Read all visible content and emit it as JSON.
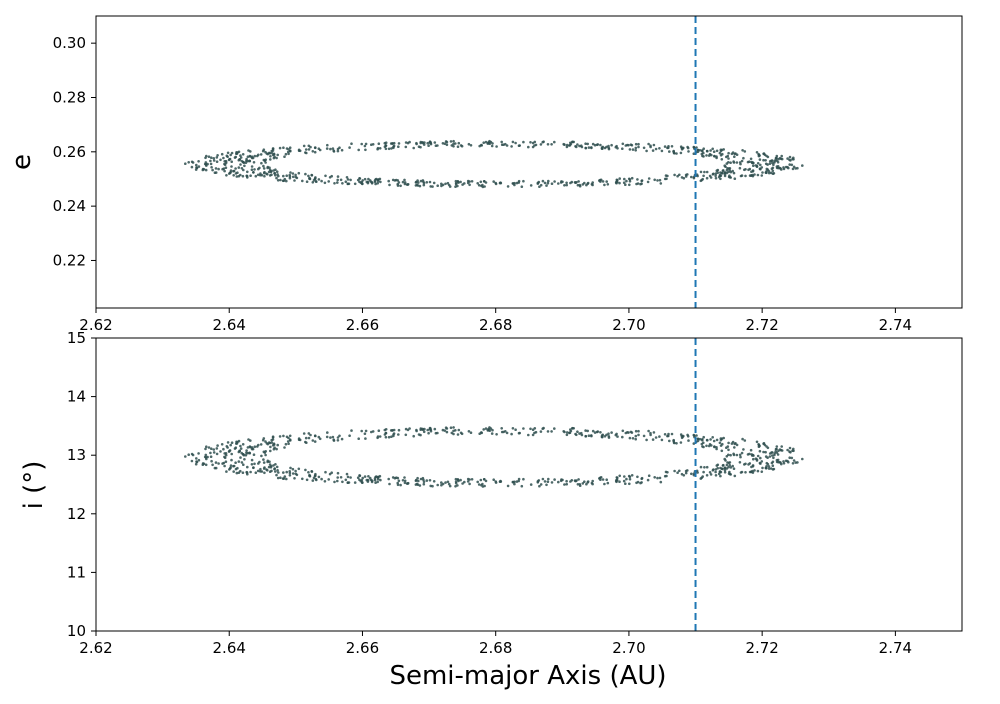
{
  "chart_data": [
    {
      "type": "scatter",
      "title": "",
      "xlabel": "",
      "ylabel": "e",
      "xlim": [
        2.62,
        2.75
      ],
      "ylim": [
        0.2025,
        0.31
      ],
      "xticks": [
        "2.62",
        "2.64",
        "2.66",
        "2.68",
        "2.70",
        "2.72",
        "2.74"
      ],
      "yticks": [
        "0.22",
        "0.24",
        "0.26",
        "0.28",
        "0.30"
      ],
      "grid": false,
      "marker_color": "#2f4f4f",
      "reference_line": {
        "x": 2.71,
        "style": "dashed",
        "color": "#1f77b4"
      },
      "distribution": {
        "a_range": [
          2.6333,
          2.7265
        ],
        "e_center": 0.2555,
        "e_half_width": 0.0085,
        "approx_points": 900
      }
    },
    {
      "type": "scatter",
      "title": "",
      "xlabel": "Semi-major Axis (AU)",
      "ylabel": "i (°)",
      "xlim": [
        2.62,
        2.75
      ],
      "ylim": [
        10,
        15
      ],
      "xticks": [
        "2.62",
        "2.64",
        "2.66",
        "2.68",
        "2.70",
        "2.72",
        "2.74"
      ],
      "yticks": [
        "10",
        "11",
        "12",
        "13",
        "14",
        "15"
      ],
      "grid": false,
      "marker_color": "#2f4f4f",
      "reference_line": {
        "x": 2.71,
        "style": "dashed",
        "color": "#1f77b4"
      },
      "distribution": {
        "a_range": [
          2.6333,
          2.7265
        ],
        "i_center": 12.97,
        "i_half_width": 0.51,
        "approx_points": 900
      }
    }
  ]
}
